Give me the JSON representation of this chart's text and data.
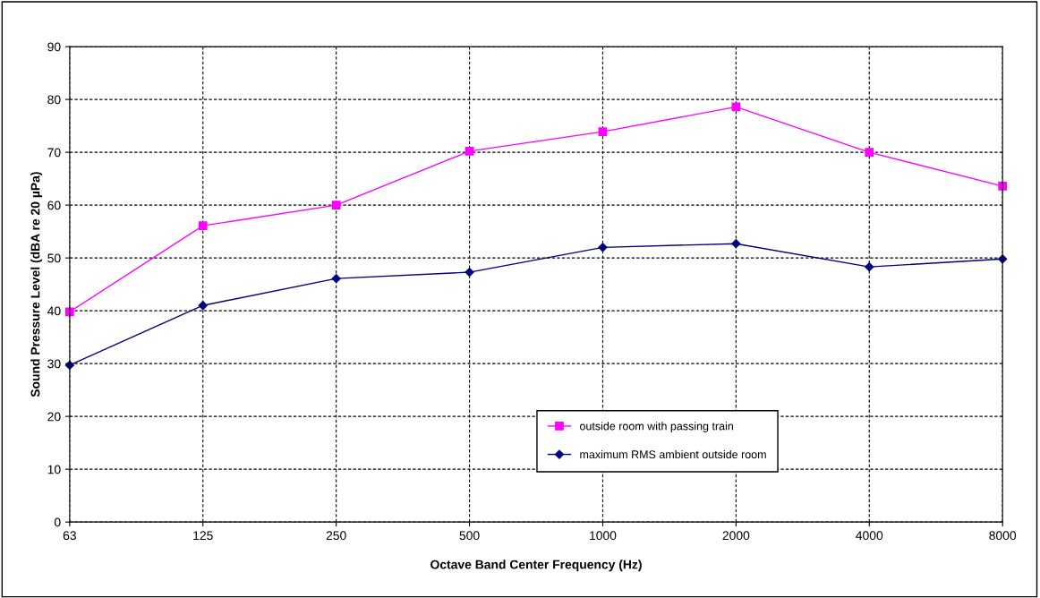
{
  "chart_data": {
    "type": "line",
    "xlabel": "Octave Band Center Frequency (Hz)",
    "ylabel": "Sound Pressure Level (dBA re 20 µPa)",
    "categories": [
      "63",
      "125",
      "250",
      "500",
      "1000",
      "2000",
      "4000",
      "8000"
    ],
    "series": [
      {
        "name": "outside room with passing train",
        "color": "#ff00ff",
        "marker": "square",
        "values": [
          39.8,
          56.1,
          60.0,
          70.2,
          73.9,
          78.6,
          70.0,
          63.6
        ]
      },
      {
        "name": "maximum RMS ambient outside room",
        "color": "#000080",
        "marker": "diamond",
        "values": [
          29.7,
          41.0,
          46.1,
          47.3,
          52.0,
          52.7,
          48.3,
          49.8
        ]
      }
    ],
    "ylim": [
      0,
      90
    ],
    "yticks": [
      0,
      10,
      20,
      30,
      40,
      50,
      60,
      70,
      80,
      90
    ],
    "grid": true,
    "legend": "bottom right",
    "line_style": "solid"
  }
}
